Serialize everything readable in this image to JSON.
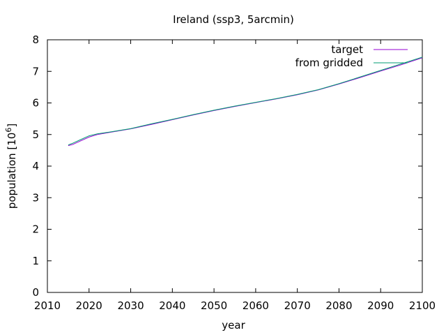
{
  "chart_data": {
    "type": "line",
    "title": "Ireland (ssp3, 5arcmin)",
    "xlabel": "year",
    "ylabel": "population [10",
    "ylabel_sup": "6",
    "ylabel_end": "]",
    "xlim": [
      2010,
      2100
    ],
    "ylim": [
      0,
      8
    ],
    "xticks": [
      2010,
      2020,
      2030,
      2040,
      2050,
      2060,
      2070,
      2080,
      2090,
      2100
    ],
    "yticks": [
      0,
      1,
      2,
      3,
      4,
      5,
      6,
      7,
      8
    ],
    "grid": false,
    "legend": "top-right",
    "series": [
      {
        "name": "target",
        "color": "#9400d3",
        "x": [
          2015,
          2016,
          2018,
          2020,
          2022,
          2025,
          2030,
          2035,
          2040,
          2045,
          2050,
          2055,
          2060,
          2065,
          2070,
          2075,
          2080,
          2085,
          2090,
          2095,
          2100
        ],
        "y": [
          4.65,
          4.68,
          4.8,
          4.92,
          5.0,
          5.07,
          5.18,
          5.32,
          5.47,
          5.62,
          5.76,
          5.89,
          6.01,
          6.13,
          6.26,
          6.41,
          6.6,
          6.8,
          7.01,
          7.21,
          7.43
        ]
      },
      {
        "name": "from gridded",
        "color": "#009e73",
        "x": [
          2015,
          2016,
          2018,
          2020,
          2022,
          2025,
          2030,
          2035,
          2040,
          2045,
          2050,
          2055,
          2060,
          2065,
          2070,
          2075,
          2080,
          2085,
          2090,
          2095,
          2100
        ],
        "y": [
          4.67,
          4.72,
          4.84,
          4.96,
          5.02,
          5.08,
          5.19,
          5.34,
          5.48,
          5.63,
          5.77,
          5.9,
          6.02,
          6.14,
          6.27,
          6.42,
          6.61,
          6.82,
          7.03,
          7.24,
          7.45
        ]
      }
    ]
  }
}
